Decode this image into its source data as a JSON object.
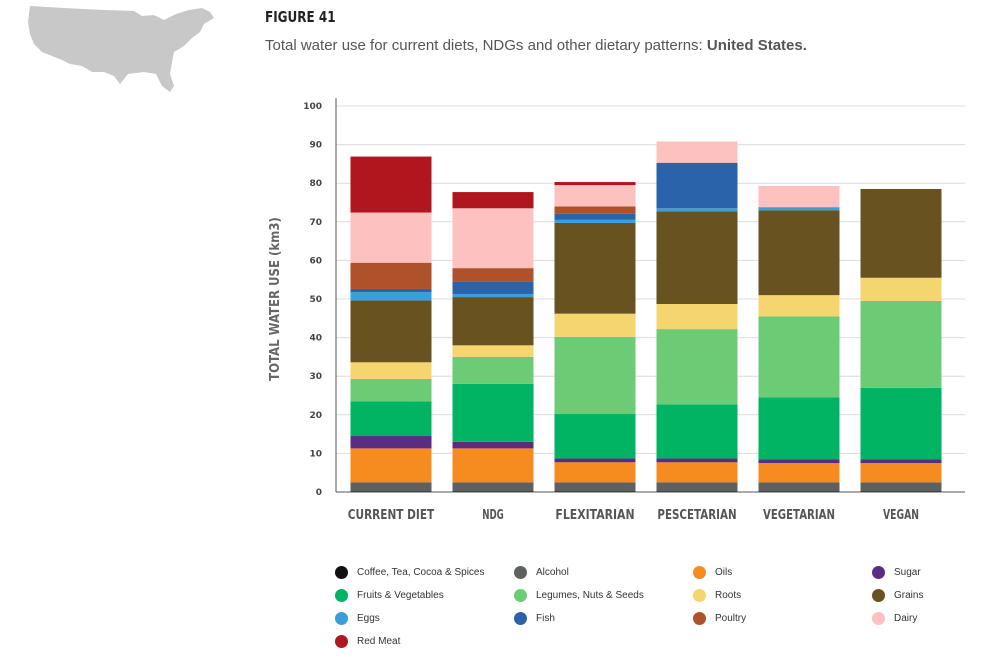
{
  "header": {
    "figure_label": "FIGURE 41",
    "subtitle_prefix": "Total water use for current diets, NDGs and other dietary patterns: ",
    "subtitle_country": "United States."
  },
  "chart_data": {
    "type": "bar",
    "stacked": true,
    "title": "",
    "xlabel": "",
    "ylabel": "TOTAL WATER USE (km3)",
    "ylim": [
      0,
      100
    ],
    "yticks": [
      0,
      10,
      20,
      30,
      40,
      50,
      60,
      70,
      80,
      90,
      100
    ],
    "grid": true,
    "legend_position": "bottom",
    "categories": [
      "CURRENT DIET",
      "NDG",
      "FLEXITARIAN",
      "PESCETARIAN",
      "VEGETARIAN",
      "VEGAN"
    ],
    "series": [
      {
        "name": "Coffee, Tea, Cocoa & Spices",
        "color": "#111111",
        "values": [
          0.2,
          0.2,
          0.2,
          0.2,
          0.2,
          0.2
        ]
      },
      {
        "name": "Alcohol",
        "color": "#5f6062",
        "values": [
          2.3,
          2.3,
          2.3,
          2.3,
          2.3,
          2.3
        ]
      },
      {
        "name": "Oils",
        "color": "#f68b1f",
        "values": [
          8.8,
          8.8,
          5.2,
          5.2,
          5.0,
          5.0
        ]
      },
      {
        "name": "Sugar",
        "color": "#5a2d82",
        "values": [
          3.2,
          1.7,
          1.0,
          1.0,
          1.0,
          1.0
        ]
      },
      {
        "name": "Fruits & Vegetables",
        "color": "#00b463",
        "values": [
          9.0,
          15.0,
          11.5,
          14.0,
          16.0,
          18.5
        ]
      },
      {
        "name": "Legumes, Nuts & Seeds",
        "color": "#6ccb75",
        "values": [
          5.8,
          7.0,
          20.0,
          19.5,
          21.0,
          22.5
        ]
      },
      {
        "name": "Roots",
        "color": "#f5d56e",
        "values": [
          4.3,
          3.0,
          6.0,
          6.5,
          5.5,
          6.0
        ]
      },
      {
        "name": "Grains",
        "color": "#675220",
        "values": [
          16.0,
          12.5,
          23.5,
          24.0,
          22.0,
          23.0
        ]
      },
      {
        "name": "Eggs",
        "color": "#3a9fd8",
        "values": [
          2.2,
          0.8,
          0.8,
          0.8,
          0.8,
          0
        ]
      },
      {
        "name": "Fish",
        "color": "#2b63aa",
        "values": [
          0.8,
          3.2,
          1.6,
          11.8,
          0,
          0
        ]
      },
      {
        "name": "Poultry",
        "color": "#ad522a",
        "values": [
          6.8,
          3.5,
          1.9,
          0,
          0,
          0
        ]
      },
      {
        "name": "Dairy",
        "color": "#fdc2bf",
        "values": [
          13.0,
          15.5,
          5.5,
          5.5,
          5.5,
          0
        ]
      },
      {
        "name": "Red Meat",
        "color": "#b0161e",
        "values": [
          14.5,
          4.2,
          0.8,
          0,
          0,
          0
        ]
      }
    ]
  }
}
